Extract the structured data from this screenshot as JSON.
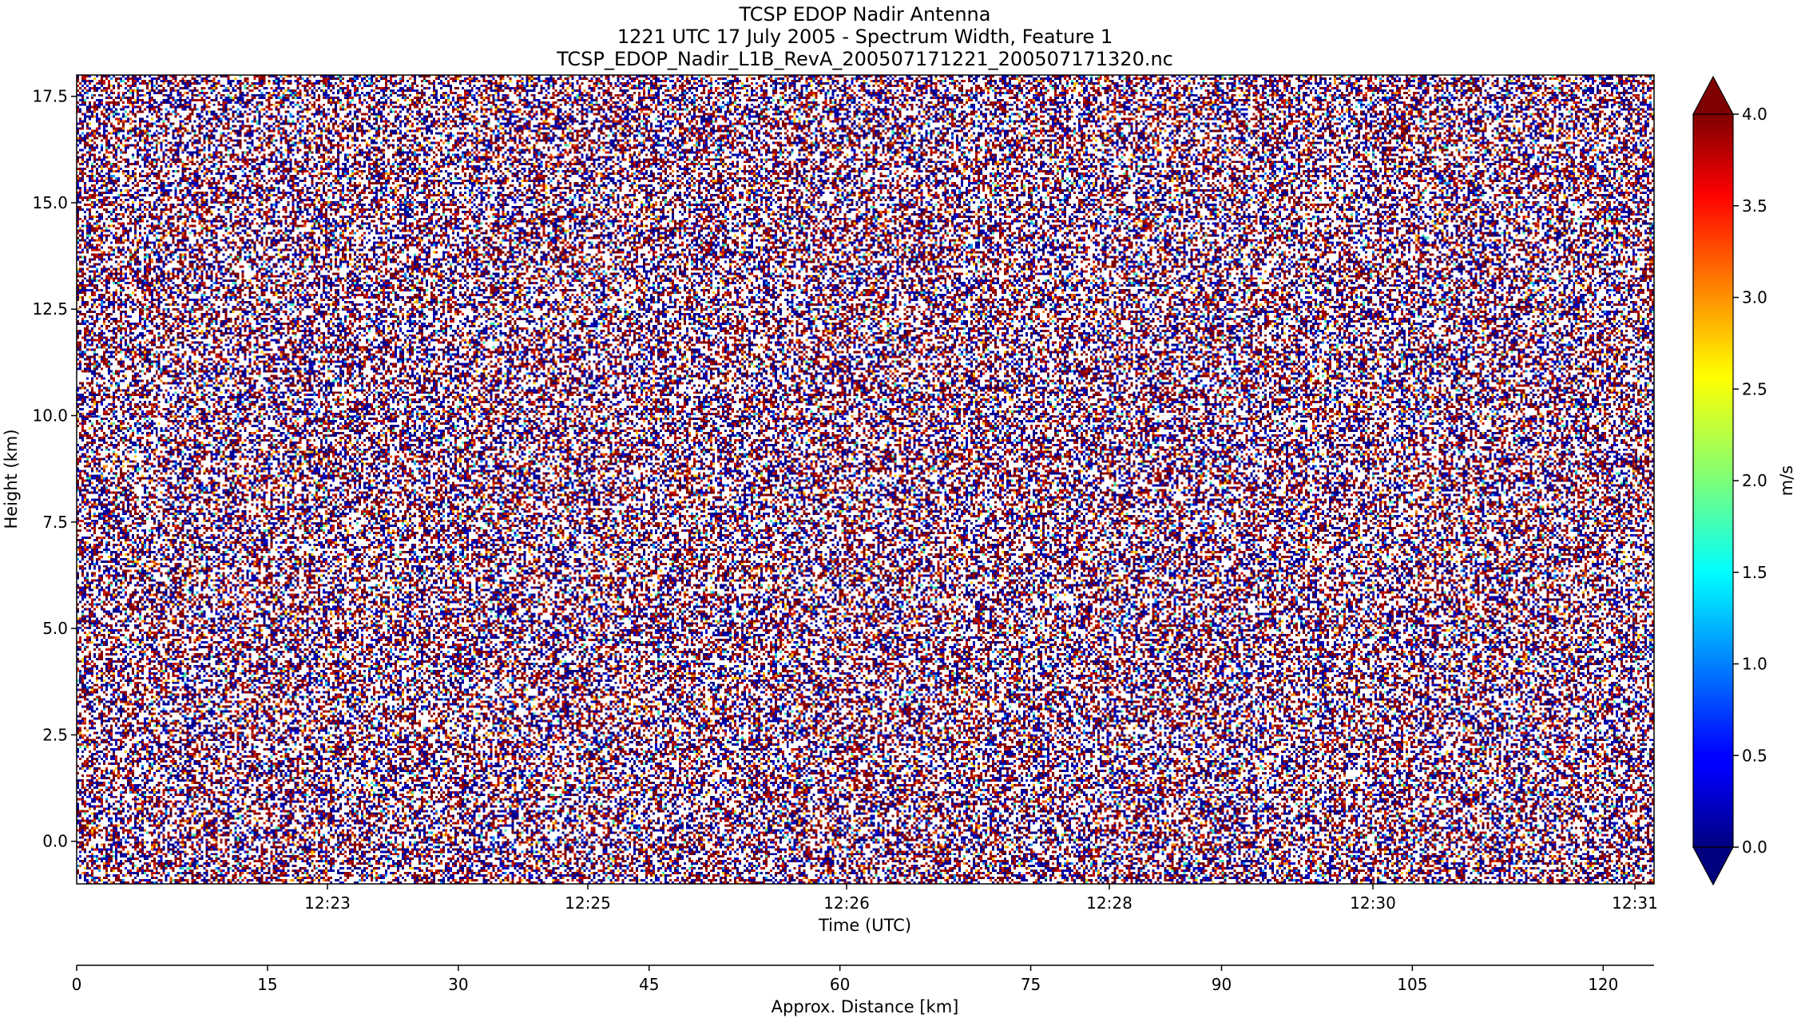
{
  "chart_data": {
    "type": "heatmap",
    "title": [
      "TCSP EDOP Nadir Antenna",
      "1221 UTC 17 July 2005 - Spectrum Width, Feature 1",
      "TCSP_EDOP_Nadir_L1B_RevA_200507171221_200507171320.nc"
    ],
    "xlabel": "Time (UTC)",
    "ylabel": "Height (km)",
    "x_ticks": [
      "12:23",
      "12:25",
      "12:26",
      "12:28",
      "12:30",
      "12:31"
    ],
    "y_ticks": [
      0.0,
      2.5,
      5.0,
      7.5,
      10.0,
      12.5,
      15.0,
      17.5
    ],
    "y_tick_labels": [
      "0.0",
      "2.5",
      "5.0",
      "7.5",
      "10.0",
      "12.5",
      "15.0",
      "17.5"
    ],
    "ylim": [
      -1.0,
      18.0
    ],
    "grid": true,
    "data_description": "noise field of spectrum width values",
    "secondary_xaxis": {
      "xlabel": "Approx. Distance [km]",
      "ticks": [
        0,
        15,
        30,
        45,
        60,
        75,
        90,
        105,
        120
      ],
      "tick_labels": [
        "0",
        "15",
        "30",
        "45",
        "60",
        "75",
        "90",
        "105",
        "120"
      ],
      "xlim": [
        0,
        124
      ]
    },
    "colorbar": {
      "label": "m/s",
      "ticks": [
        0.0,
        0.5,
        1.0,
        1.5,
        2.0,
        2.5,
        3.0,
        3.5,
        4.0
      ],
      "tick_labels": [
        "0.0",
        "0.5",
        "1.0",
        "1.5",
        "2.0",
        "2.5",
        "3.0",
        "3.5",
        "4.0"
      ],
      "range": [
        0.0,
        4.0
      ],
      "extend": "both",
      "colormap": "jet"
    }
  }
}
